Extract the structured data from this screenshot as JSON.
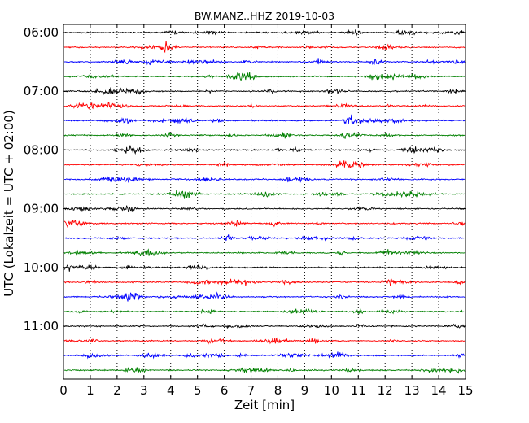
{
  "chart_data": {
    "type": "line",
    "title": "BW.MANZ..HHZ 2019-10-03",
    "xlabel": "Zeit  [min]",
    "ylabel": "UTC (Lokalzeit = UTC + 02:00)",
    "x_ticks": [
      "0",
      "1",
      "2",
      "3",
      "4",
      "5",
      "6",
      "7",
      "8",
      "9",
      "10",
      "11",
      "12",
      "13",
      "14",
      "15"
    ],
    "xlim": [
      0,
      15
    ],
    "y_ticks": [
      "06:00",
      "07:00",
      "08:00",
      "09:00",
      "10:00",
      "11:00"
    ],
    "grid": "vertical dotted",
    "trace_interval_min": 15,
    "trace_start": "06:00",
    "trace_count": 24,
    "trace_colors": [
      "#000000",
      "#ff0000",
      "#0000ff",
      "#008000"
    ]
  }
}
